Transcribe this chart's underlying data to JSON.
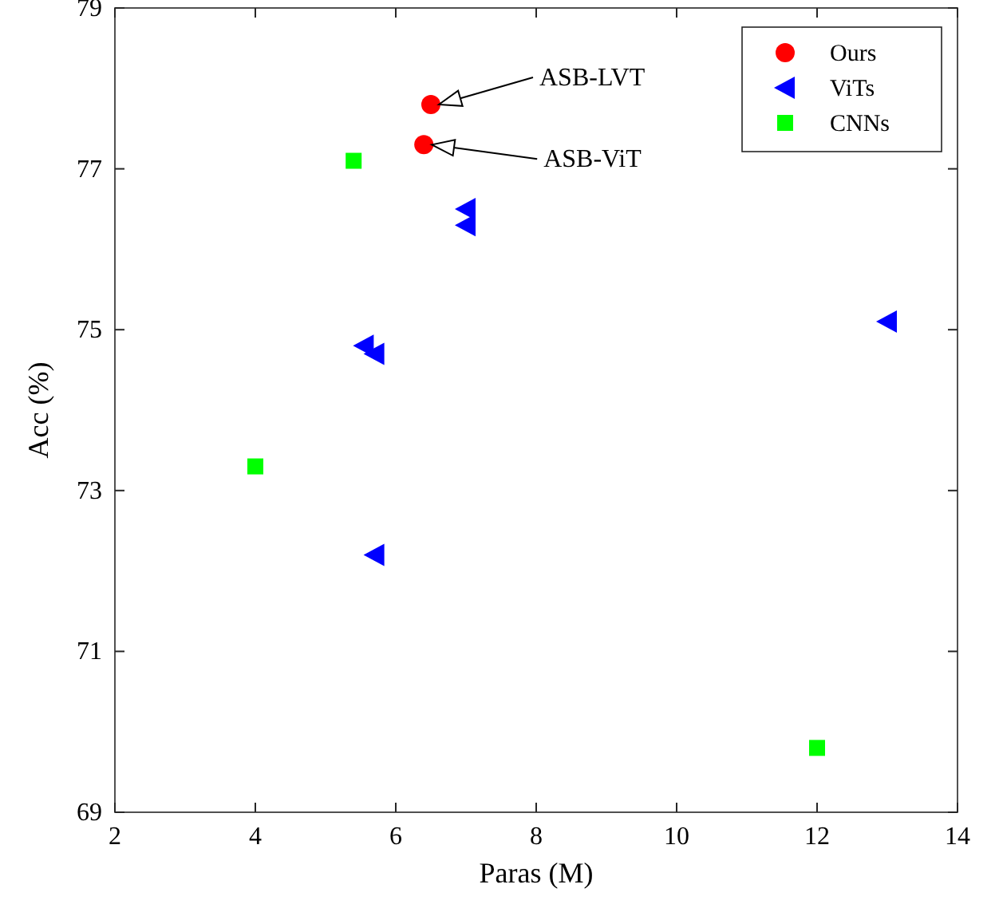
{
  "chart_data": {
    "type": "scatter",
    "xlabel": "Paras (M)",
    "ylabel": "Acc (%)",
    "xlim": [
      2,
      14
    ],
    "xticks": [
      2,
      4,
      6,
      8,
      10,
      12,
      14
    ],
    "ylim": [
      69,
      79
    ],
    "yticks": [
      69,
      71,
      73,
      75,
      77,
      79
    ],
    "grid": false,
    "legend": "top right",
    "series": [
      {
        "name": "Ours",
        "color": "#ff0000",
        "marker": "circle",
        "x": [
          6.5,
          6.4
        ],
        "values": [
          77.8,
          77.3
        ]
      },
      {
        "name": "ViTs",
        "color": "#0000ff",
        "marker": "triangle",
        "x": [
          7.0,
          7.0,
          5.55,
          5.7,
          5.7,
          13.0
        ],
        "values": [
          76.5,
          76.3,
          74.8,
          74.7,
          72.2,
          75.1
        ]
      },
      {
        "name": "CNNs",
        "color": "#00ff00",
        "marker": "square",
        "x": [
          5.4,
          4.0,
          12.0
        ],
        "values": [
          77.1,
          73.3,
          69.8
        ]
      }
    ],
    "annotations": [
      {
        "text": "ASB-LVT",
        "x": 6.5,
        "y": 77.8
      },
      {
        "text": "ASB-ViT",
        "x": 6.4,
        "y": 77.3
      }
    ]
  }
}
